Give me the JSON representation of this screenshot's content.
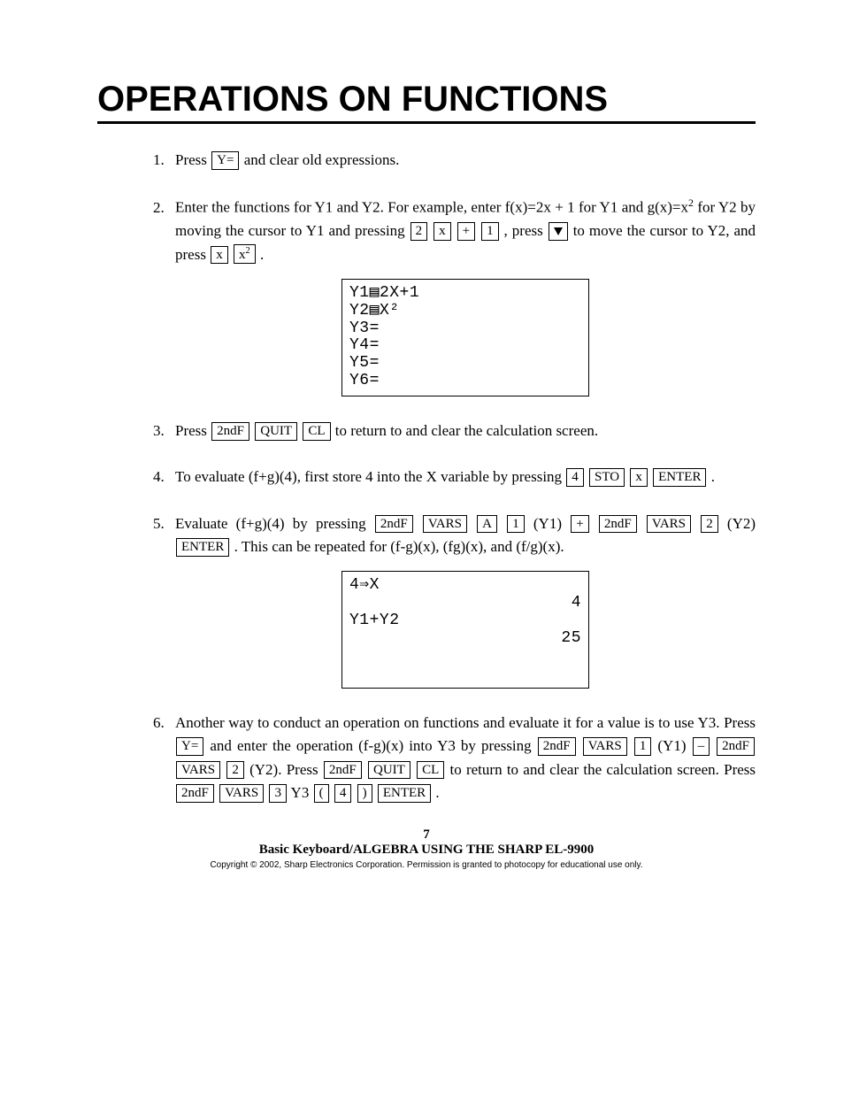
{
  "title": "OPERATIONS ON FUNCTIONS",
  "steps": {
    "s1": {
      "t1": "Press ",
      "k1": "Y=",
      "t2": " and clear old expressions."
    },
    "s2": {
      "t1": "Enter the functions for Y1 and Y2.  For example, enter f(x)=2x + 1 for Y1 and g(x)=x",
      "sup1": "2",
      "t2": " for Y2 by moving the cursor to Y1 and pressing ",
      "k1": "2",
      "k2": "x",
      "k3": "+",
      "k4": "1",
      "t3": " , press ",
      "t4": " to move the cursor to Y2, and press ",
      "k6": "x",
      "k7_a": "x",
      "k7_b": "2",
      "t5": " ."
    },
    "s3": {
      "t1": "Press ",
      "k1": "2ndF",
      "k2": "QUIT",
      "k3": "CL",
      "t2": " to return to and clear the calculation screen."
    },
    "s4": {
      "t1": "To evaluate (f+g)(4), first store 4 into the X variable by pressing ",
      "k1": "4",
      "k2": "STO",
      "k3": "x",
      "k4": "ENTER",
      "t2": " ."
    },
    "s5": {
      "t1": "Evaluate (f+g)(4) by pressing ",
      "k1": "2ndF",
      "k2": "VARS",
      "k3": "A",
      "k4": "1",
      "t2": " (Y1) ",
      "k5": "+",
      "k6": "2ndF",
      "k7": "VARS",
      "k8": "2",
      "t3": " (Y2) ",
      "k9": "ENTER",
      "t4": " .  This can be repeated for (f-g)(x), (fg)(x), and (f/g)(x)."
    },
    "s6": {
      "t1": "Another way to conduct an operation on functions and evaluate it for a value is to use Y3.  Press ",
      "k1": "Y=",
      "t2": " and enter the operation (f-g)(x) into Y3 by pressing ",
      "k2": "2ndF",
      "k3": "VARS",
      "k4": "1",
      "t3": " (Y1) ",
      "k5": "–",
      "k6": "2ndF",
      "k7": "VARS",
      "k8": "2",
      "t4": " (Y2).  Press ",
      "k9": "2ndF",
      "k10": "QUIT",
      "k11": "CL",
      "t5": " to return to and clear the calculation screen.  Press ",
      "k12": "2ndF",
      "k13": "VARS",
      "k14": "3",
      "t6": " Y3 ",
      "k15": "(",
      "k16": "4",
      "k17": ")",
      "k18": "ENTER",
      "t7": " ."
    }
  },
  "screens": {
    "sc1": {
      "l1": "Y1▤2X+1",
      "l2": "Y2▤X²",
      "l3": "Y3=",
      "l4": "Y4=",
      "l5": "Y5=",
      "l6": "Y6="
    },
    "sc2": {
      "l1": "4⇒X",
      "r1": "4",
      "l2": "Y1+Y2",
      "r2": "25"
    }
  },
  "footer": {
    "page": "7",
    "book": "Basic Keyboard/ALGEBRA USING THE SHARP EL-9900",
    "copy": "Copyright © 2002, Sharp Electronics Corporation.  Permission is granted to photocopy for educational use only."
  },
  "colors": {
    "text": "#000000",
    "background": "#ffffff",
    "rule": "#000000"
  }
}
